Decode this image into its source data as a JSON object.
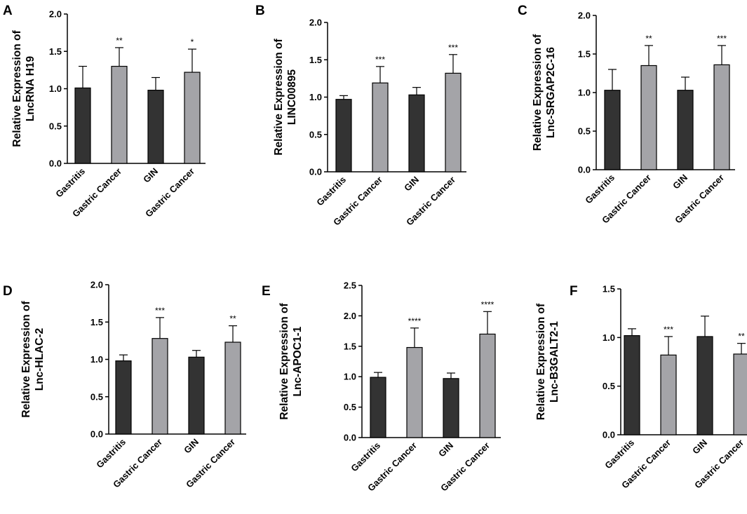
{
  "figure": {
    "colors": {
      "dark_bar": "#333333",
      "light_bar": "#a4a4a8",
      "axis": "#000000"
    }
  },
  "chart_data": [
    {
      "letter": "A",
      "type": "bar",
      "ylabel_lines": [
        "Relative Expression of",
        "LncRNA H19"
      ],
      "categories": [
        "Gastritis",
        "Gastric Cancer",
        "GIN",
        "Gastric Cancer"
      ],
      "values": [
        1.01,
        1.3,
        0.98,
        1.22
      ],
      "errors": [
        0.29,
        0.25,
        0.17,
        0.31
      ],
      "significance": [
        "",
        "**",
        "",
        "*"
      ],
      "bar_colors": [
        "dark",
        "light",
        "dark",
        "light"
      ],
      "ylim": [
        0,
        2.0
      ],
      "yticks": [
        "0.0",
        "0.5",
        "1.0",
        "1.5",
        "2.0"
      ]
    },
    {
      "letter": "B",
      "type": "bar",
      "ylabel_lines": [
        "Relative Expression of",
        "LINC00895"
      ],
      "categories": [
        "Gastritis",
        "Gastric Cancer",
        "GIN",
        "Gastric Cancer"
      ],
      "values": [
        0.97,
        1.19,
        1.03,
        1.32
      ],
      "errors": [
        0.05,
        0.22,
        0.1,
        0.25
      ],
      "significance": [
        "",
        "***",
        "",
        "***"
      ],
      "bar_colors": [
        "dark",
        "light",
        "dark",
        "light"
      ],
      "ylim": [
        0,
        2.0
      ],
      "yticks": [
        "0.0",
        "0.5",
        "1.0",
        "1.5",
        "2.0"
      ]
    },
    {
      "letter": "C",
      "type": "bar",
      "ylabel_lines": [
        "Relative Expression of",
        "Lnc-SRGAP2C-16"
      ],
      "categories": [
        "Gastritis",
        "Gastric Cancer",
        "GIN",
        "Gastric Cancer"
      ],
      "values": [
        1.03,
        1.35,
        1.03,
        1.36
      ],
      "errors": [
        0.27,
        0.26,
        0.17,
        0.25
      ],
      "significance": [
        "",
        "**",
        "",
        "***"
      ],
      "bar_colors": [
        "dark",
        "light",
        "dark",
        "light"
      ],
      "ylim": [
        0,
        2.0
      ],
      "yticks": [
        "0.0",
        "0.5",
        "1.0",
        "1.5",
        "2.0"
      ]
    },
    {
      "letter": "D",
      "type": "bar",
      "ylabel_lines": [
        "Relative Expression of",
        "Lnc-HLAC-2"
      ],
      "categories": [
        "Gastritis",
        "Gastric Cancer",
        "GIN",
        "Gastric Cancer"
      ],
      "values": [
        0.98,
        1.28,
        1.03,
        1.23
      ],
      "errors": [
        0.08,
        0.28,
        0.09,
        0.22
      ],
      "significance": [
        "",
        "***",
        "",
        "**"
      ],
      "bar_colors": [
        "dark",
        "light",
        "dark",
        "light"
      ],
      "ylim": [
        0,
        2.0
      ],
      "yticks": [
        "0.0",
        "0.5",
        "1.0",
        "1.5",
        "2.0"
      ]
    },
    {
      "letter": "E",
      "type": "bar",
      "ylabel_lines": [
        "Relative Expression of",
        "Lnc-APOC1-1"
      ],
      "categories": [
        "Gastritis",
        "Gastric Cancer",
        "GIN",
        "Gastric Cancer"
      ],
      "values": [
        0.99,
        1.48,
        0.97,
        1.7
      ],
      "errors": [
        0.08,
        0.32,
        0.09,
        0.37
      ],
      "significance": [
        "",
        "****",
        "",
        "****"
      ],
      "bar_colors": [
        "dark",
        "light",
        "dark",
        "light"
      ],
      "ylim": [
        0,
        2.5
      ],
      "yticks": [
        "0.0",
        "0.5",
        "1.0",
        "1.5",
        "2.0",
        "2.5"
      ]
    },
    {
      "letter": "F",
      "type": "bar",
      "ylabel_lines": [
        "Relative Expression of",
        "Lnc-B3GALT2-1"
      ],
      "categories": [
        "Gastritis",
        "Gastric Cancer",
        "GIN",
        "Gastric Cancer"
      ],
      "values": [
        1.02,
        0.82,
        1.01,
        0.83
      ],
      "errors": [
        0.07,
        0.19,
        0.21,
        0.11
      ],
      "significance": [
        "",
        "***",
        "",
        "**"
      ],
      "bar_colors": [
        "dark",
        "light",
        "dark",
        "light"
      ],
      "ylim": [
        0,
        1.5
      ],
      "yticks": [
        "0.0",
        "0.5",
        "1.0",
        "1.5"
      ]
    }
  ]
}
